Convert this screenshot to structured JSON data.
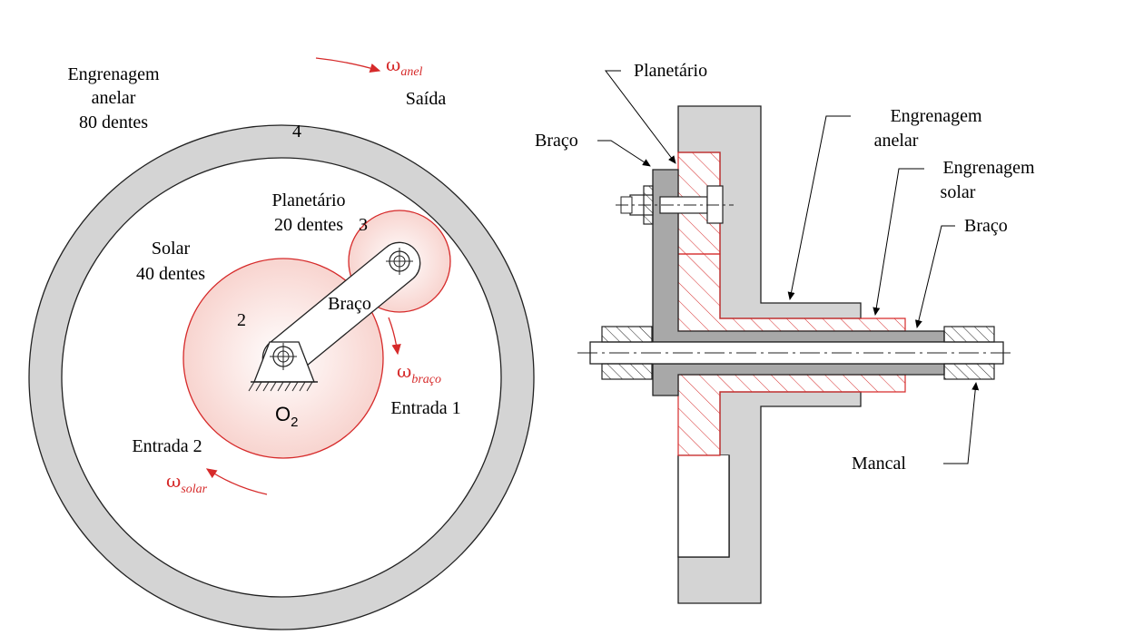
{
  "left_view": {
    "ring_label_line1": "Engrenagem",
    "ring_label_line2": "anelar",
    "ring_label_line3": "80 dentes",
    "output_label": "Saída",
    "ring_number": "4",
    "planet_label_line1": "Planetário",
    "planet_label_line2": "20 dentes",
    "planet_number": "3",
    "sun_label_line1": "Solar",
    "sun_label_line2": "40 dentes",
    "sun_number": "2",
    "arm_label": "Braço",
    "pivot_label": "O",
    "pivot_sub": "2",
    "input1_label": "Entrada 1",
    "input2_label": "Entrada 2",
    "omega_symbol": "ω",
    "omega_ring_sub": "anel",
    "omega_arm_sub": "braço",
    "omega_sun_sub": "solar"
  },
  "right_view": {
    "planet_label": "Planetário",
    "arm_label_left": "Braço",
    "ring_label_line1": "Engrenagem",
    "ring_label_line2": "anelar",
    "sun_label_line1": "Engrenagem",
    "sun_label_line2": "solar",
    "arm_label_right": "Braço",
    "bearing_label": "Mancal"
  },
  "colors": {
    "gear_red": "#d62a2a",
    "gear_fill": "#fbe3e0",
    "ring_gray": "#d4d4d4",
    "arm_gray": "#a8a8a8",
    "outline": "#222222"
  }
}
